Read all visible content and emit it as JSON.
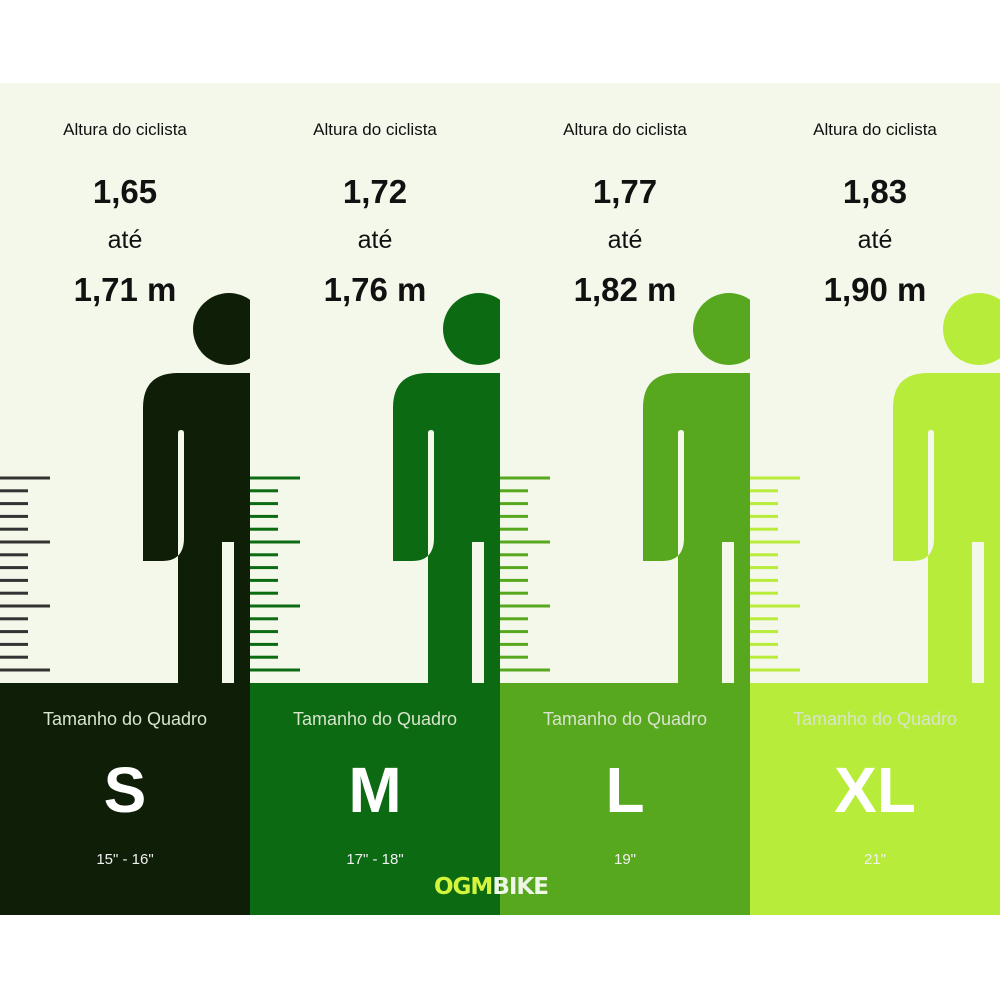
{
  "columns": [
    {
      "label": "Altura do ciclista",
      "from": "1,65",
      "connector": "até",
      "to": "1,71 m",
      "frame_label": "Tamanho do Quadro",
      "size": "S",
      "frame_range": "15\" - 16\"",
      "color": "#0f1e07",
      "tick_color": "#333333"
    },
    {
      "label": "Altura do ciclista",
      "from": "1,72",
      "connector": "até",
      "to": "1,76 m",
      "frame_label": "Tamanho do Quadro",
      "size": "M",
      "frame_range": "17\" - 18\"",
      "color": "#0b6a12",
      "tick_color": "#0b6a12"
    },
    {
      "label": "Altura do ciclista",
      "from": "1,77",
      "connector": "até",
      "to": "1,82 m",
      "frame_label": "Tamanho do Quadro",
      "size": "L",
      "frame_range": "19\"",
      "color": "#57a81e",
      "tick_color": "#57a81e"
    },
    {
      "label": "Altura do ciclista",
      "from": "1,83",
      "connector": "até",
      "to": "1,90 m",
      "frame_label": "Tamanho do Quadro",
      "size": "XL",
      "frame_range": "21\"",
      "color": "#b8ec3a",
      "tick_color": "#b8ec3a"
    }
  ],
  "logo": {
    "part1": "OGM",
    "part2": "BIKE"
  }
}
